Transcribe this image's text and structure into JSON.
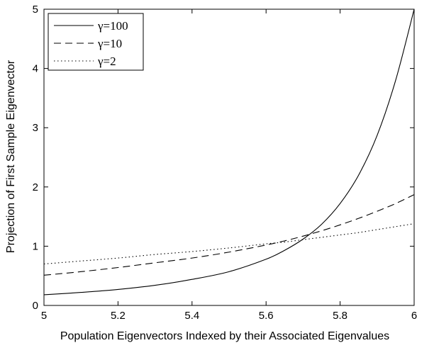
{
  "chart_data": {
    "type": "line",
    "title": "",
    "xlabel": "Population Eigenvectors Indexed by their Associated Eigenvalues",
    "ylabel": "Projection of First Sample Eigenvector",
    "xlim": [
      5,
      6
    ],
    "ylim": [
      0,
      5
    ],
    "xticks": [
      5,
      5.2,
      5.4,
      5.6,
      5.8,
      6
    ],
    "xtick_labels": [
      "5",
      "5.2",
      "5.4",
      "5.6",
      "5.8",
      "6"
    ],
    "yticks": [
      0,
      1,
      2,
      3,
      4,
      5
    ],
    "ytick_labels": [
      "0",
      "1",
      "2",
      "3",
      "4",
      "5"
    ],
    "grid": false,
    "legend_position": "top-left",
    "x": [
      5.0,
      5.1,
      5.2,
      5.3,
      5.4,
      5.5,
      5.6,
      5.65,
      5.7,
      5.75,
      5.8,
      5.85,
      5.9,
      5.95,
      6.0
    ],
    "series": [
      {
        "name": "γ=100",
        "style": "solid",
        "values": [
          0.18,
          0.22,
          0.27,
          0.34,
          0.44,
          0.57,
          0.78,
          0.93,
          1.12,
          1.37,
          1.72,
          2.2,
          2.87,
          3.8,
          5.0
        ]
      },
      {
        "name": "γ=10",
        "style": "dashed",
        "values": [
          0.51,
          0.57,
          0.64,
          0.72,
          0.8,
          0.9,
          1.02,
          1.09,
          1.17,
          1.26,
          1.36,
          1.47,
          1.59,
          1.72,
          1.87
        ]
      },
      {
        "name": "γ=2",
        "style": "dotted",
        "values": [
          0.7,
          0.75,
          0.8,
          0.86,
          0.91,
          0.97,
          1.04,
          1.07,
          1.11,
          1.15,
          1.19,
          1.23,
          1.28,
          1.33,
          1.38
        ]
      }
    ]
  }
}
